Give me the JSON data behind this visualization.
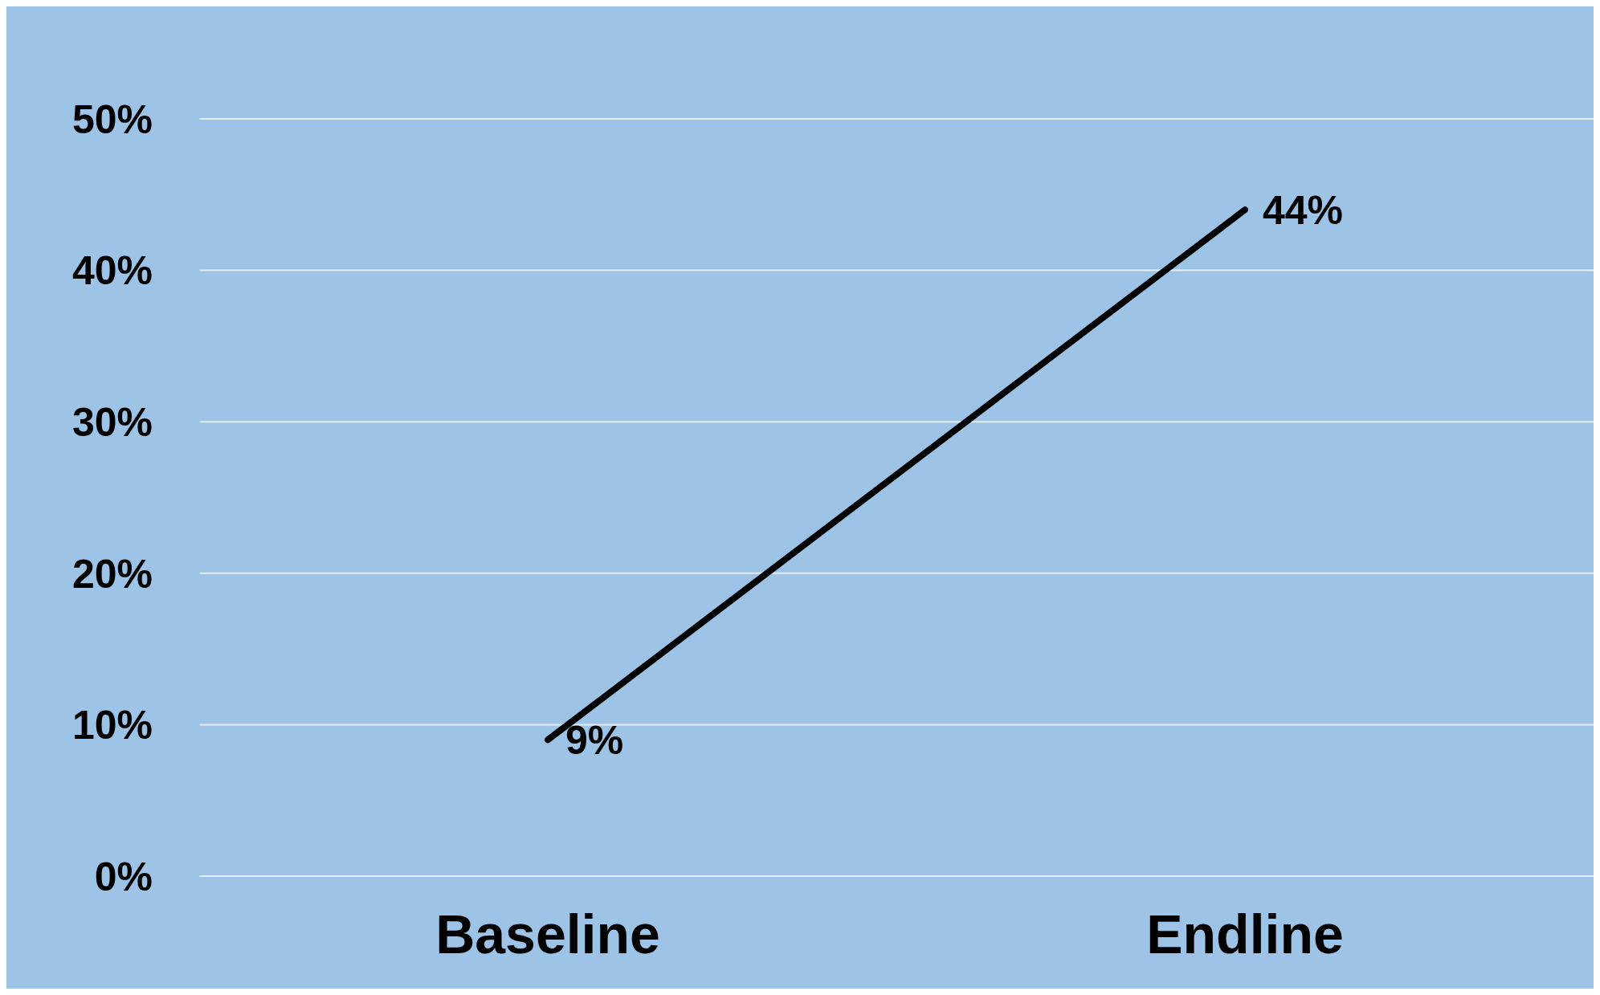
{
  "chart_data": {
    "type": "line",
    "categories": [
      "Baseline",
      "Endline"
    ],
    "series": [
      {
        "color": "#000000",
        "values": [
          9,
          44
        ],
        "value_labels": [
          "9%",
          "44%"
        ]
      }
    ],
    "ylim": [
      0,
      50
    ],
    "yticks": [
      {
        "value": 0,
        "label": "0%"
      },
      {
        "value": 10,
        "label": "10%"
      },
      {
        "value": 20,
        "label": "20%"
      },
      {
        "value": 30,
        "label": "30%"
      },
      {
        "value": 40,
        "label": "40%"
      },
      {
        "value": 50,
        "label": "50%"
      }
    ],
    "grid": "y",
    "marker": "none",
    "line_style": "solid"
  }
}
